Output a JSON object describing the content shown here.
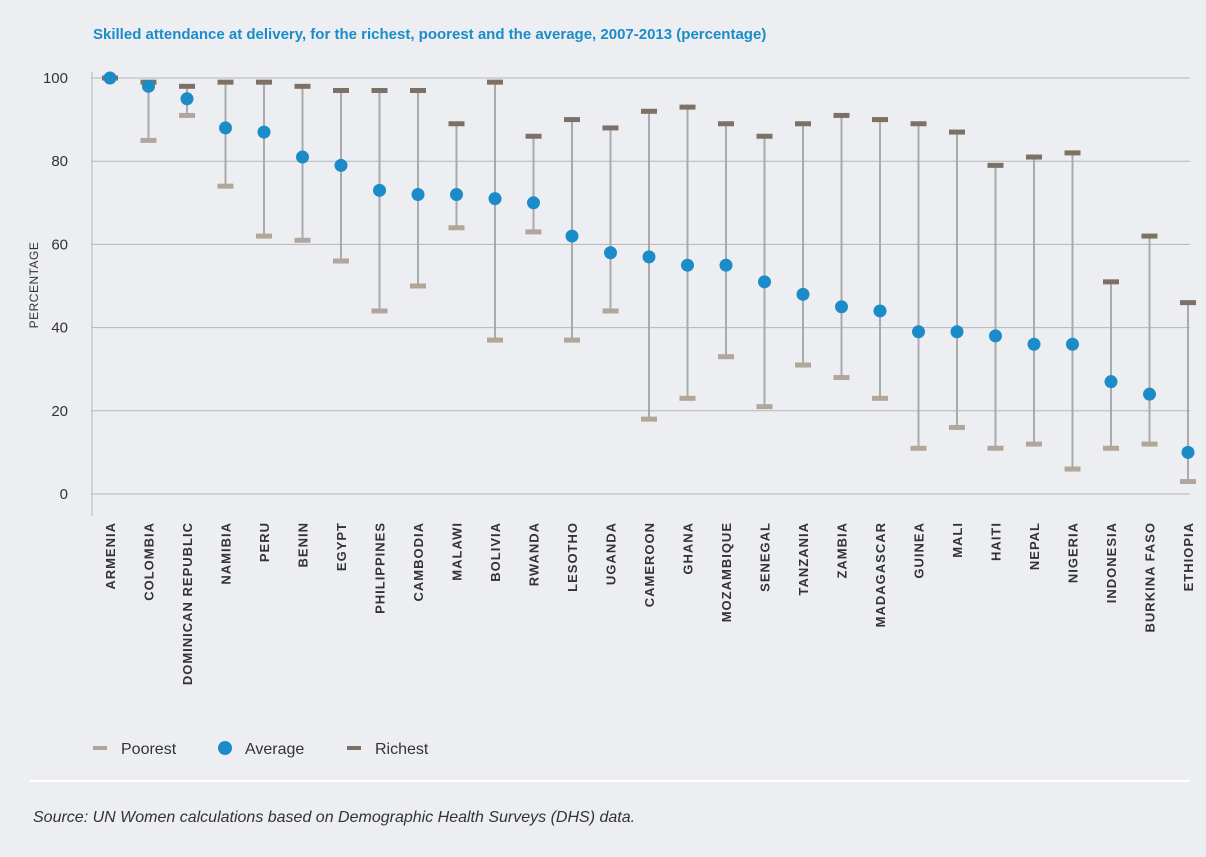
{
  "chart_data": {
    "type": "range-dot",
    "title": "Skilled attendance at delivery, for the richest, poorest and the average, 2007-2013 (percentage)",
    "ylabel": "PERCENTAGE",
    "xlabel": "",
    "ylim": [
      0,
      100
    ],
    "yticks": [
      0,
      20,
      40,
      60,
      80,
      100
    ],
    "grid": true,
    "legend_position": "bottom-left",
    "categories": [
      "ARMENIA",
      "COLOMBIA",
      "DOMINICAN REPUBLIC",
      "NAMIBIA",
      "PERU",
      "BENIN",
      "EGYPT",
      "PHILIPPINES",
      "CAMBODIA",
      "MALAWI",
      "BOLIVIA",
      "RWANDA",
      "LESOTHO",
      "UGANDA",
      "CAMEROON",
      "GHANA",
      "MOZAMBIQUE",
      "SENEGAL",
      "TANZANIA",
      "ZAMBIA",
      "MADAGASCAR",
      "GUINEA",
      "MALI",
      "HAITI",
      "NEPAL",
      "NIGERIA",
      "INDONESIA",
      "BURKINA FASO",
      "ETHIOPIA"
    ],
    "series": [
      {
        "name": "Poorest",
        "values": [
          100,
          85,
          91,
          74,
          62,
          61,
          56,
          44,
          50,
          64,
          37,
          63,
          37,
          44,
          18,
          23,
          33,
          21,
          31,
          28,
          23,
          11,
          16,
          11,
          12,
          6,
          11,
          12,
          3
        ]
      },
      {
        "name": "Average",
        "values": [
          100,
          98,
          95,
          88,
          87,
          81,
          79,
          73,
          72,
          72,
          71,
          70,
          62,
          58,
          57,
          55,
          55,
          51,
          48,
          45,
          44,
          39,
          39,
          38,
          36,
          36,
          27,
          24,
          10
        ]
      },
      {
        "name": "Richest",
        "values": [
          100,
          99,
          98,
          99,
          99,
          98,
          97,
          97,
          97,
          89,
          99,
          86,
          90,
          88,
          92,
          93,
          89,
          86,
          89,
          91,
          90,
          89,
          87,
          79,
          81,
          82,
          51,
          62,
          46
        ]
      }
    ],
    "source": "Source: UN Women calculations based on Demographic Health Surveys (DHS) data.",
    "colors": {
      "poorest": "#b2a69a",
      "average": "#1b8cc8",
      "richest": "#7d7166",
      "range_line": "#a9aaad",
      "grid": "#b5b6b9",
      "title": "#1b8cc8",
      "text": "#333333",
      "background": "#eceef2"
    }
  }
}
